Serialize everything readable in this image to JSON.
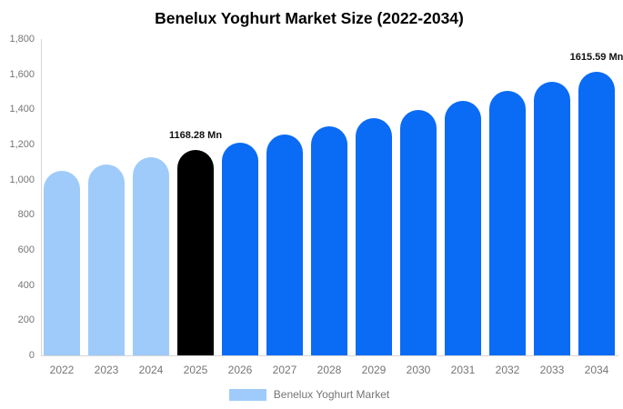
{
  "title": "Benelux Yoghurt Market Size (2022-2034)",
  "legend": {
    "label": "Benelux Yoghurt Market",
    "swatch_color": "#9ECBFA"
  },
  "colors": {
    "historical_bar": "#9ECBFA",
    "base_year_bar": "#000000",
    "forecast_bar": "#0A6BF5",
    "axis_line": "#D6D6D6",
    "tick_text": "#757575",
    "value_label_text": "#111111",
    "title_text": "#000000",
    "background": "#FFFFFF"
  },
  "chart_data": {
    "type": "bar",
    "title": "Benelux Yoghurt Market Size (2022-2034)",
    "xlabel": "",
    "ylabel": "",
    "unit": "Mn",
    "categories": [
      "2022",
      "2023",
      "2024",
      "2025",
      "2026",
      "2027",
      "2028",
      "2029",
      "2030",
      "2031",
      "2032",
      "2033",
      "2034"
    ],
    "series": [
      {
        "name": "Benelux Yoghurt Market",
        "values": [
          1048.6,
          1087.1,
          1127.0,
          1168.28,
          1211.1,
          1255.6,
          1301.6,
          1349.3,
          1398.8,
          1450.1,
          1503.3,
          1558.4,
          1615.59
        ]
      }
    ],
    "bar_colors": [
      "#9ECBFA",
      "#9ECBFA",
      "#9ECBFA",
      "#000000",
      "#0A6BF5",
      "#0A6BF5",
      "#0A6BF5",
      "#0A6BF5",
      "#0A6BF5",
      "#0A6BF5",
      "#0A6BF5",
      "#0A6BF5",
      "#0A6BF5"
    ],
    "bar_labels": [
      null,
      null,
      null,
      "1168.28 Mn",
      null,
      null,
      null,
      null,
      null,
      null,
      null,
      null,
      "1615.59 Mn"
    ],
    "y_ticks": [
      0,
      200,
      400,
      600,
      800,
      1000,
      1200,
      1400,
      1600,
      1800
    ],
    "y_tick_labels": [
      "0",
      "200",
      "400",
      "600",
      "800",
      "1,000",
      "1,200",
      "1,400",
      "1,600",
      "1,800"
    ],
    "ylim": [
      0,
      1800
    ],
    "grid": false,
    "legend_position": "bottom"
  }
}
